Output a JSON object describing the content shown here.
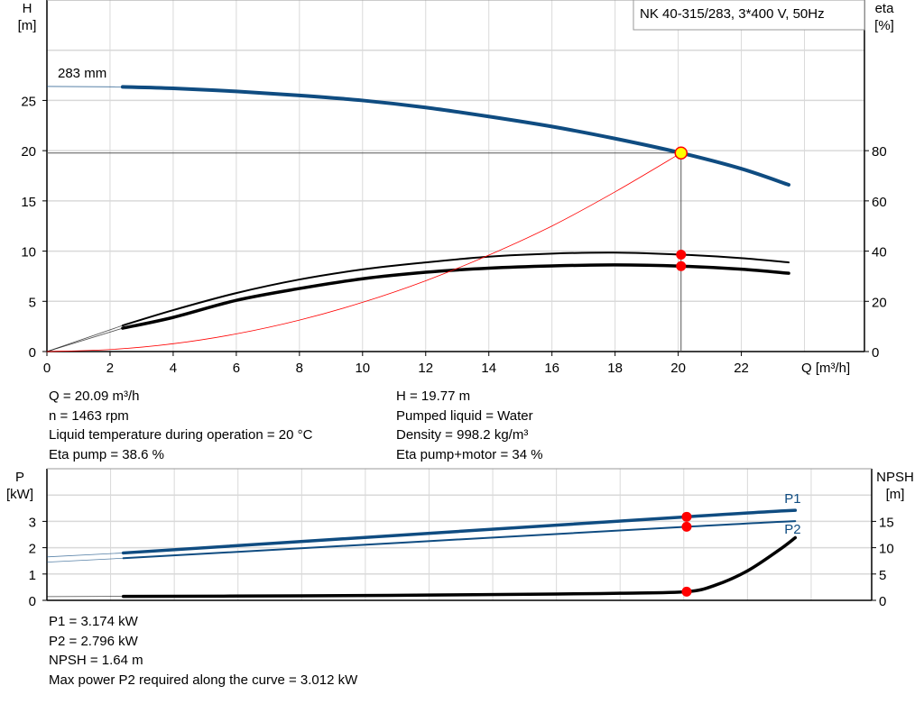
{
  "chart_data": [
    {
      "type": "line",
      "title": "NK 40-315/283, 3*400 V, 50Hz",
      "xlabel": "Q [m³/h]",
      "ylabel": [
        "H",
        "[m]"
      ],
      "y2label": [
        "eta",
        "[%]"
      ],
      "xlim": [
        0,
        25.9
      ],
      "ylim": [
        0,
        35
      ],
      "y2lim": [
        0,
        140
      ],
      "xticks": [
        0,
        2,
        4,
        6,
        8,
        10,
        12,
        14,
        16,
        18,
        20,
        22
      ],
      "yticks": [
        0,
        5,
        10,
        15,
        20,
        25
      ],
      "y2ticks": [
        0,
        20,
        40,
        60,
        80
      ],
      "grid": true,
      "annotation": "283 mm",
      "operating_point": {
        "Q": 20.09,
        "H": 19.77
      },
      "series": [
        {
          "id": "head",
          "axis": "y",
          "color": "#0f4c81",
          "x": [
            2.4,
            4,
            6,
            8,
            10,
            12,
            14,
            16,
            18,
            20.09,
            22,
            23.5
          ],
          "values": [
            26.35,
            26.2,
            25.9,
            25.5,
            25.0,
            24.3,
            23.4,
            22.4,
            21.2,
            19.77,
            18.2,
            16.6
          ],
          "extension": {
            "x": [
              0,
              2.4
            ],
            "values": [
              26.4,
              26.35
            ]
          }
        },
        {
          "id": "eta-pump",
          "axis": "y2",
          "color": "#000000",
          "x": [
            2.4,
            4,
            6,
            8,
            10,
            12,
            14,
            16,
            18,
            20.09,
            22,
            23.5
          ],
          "values": [
            10.4,
            16.5,
            23.3,
            28.7,
            32.7,
            35.5,
            37.8,
            39.0,
            39.4,
            38.6,
            37.2,
            35.5
          ],
          "extension": {
            "x": [
              0,
              2.4
            ],
            "values": [
              0,
              10.4
            ]
          }
        },
        {
          "id": "eta-pump-motor",
          "axis": "y2",
          "color": "#000000",
          "x": [
            2.4,
            4,
            6,
            8,
            10,
            12,
            14,
            16,
            18,
            20.09,
            22,
            23.5
          ],
          "values": [
            9.3,
            13.6,
            20.4,
            25.1,
            29.0,
            31.6,
            33.2,
            34.1,
            34.5,
            34.0,
            32.8,
            31.2
          ],
          "extension": {
            "x": [
              0,
              2.4
            ],
            "values": [
              0,
              9.3
            ]
          }
        },
        {
          "id": "system-curve",
          "axis": "y",
          "color": "#ff0000",
          "x": [
            0,
            2,
            4,
            6,
            8,
            10,
            12,
            14,
            16,
            18,
            20.09
          ],
          "values": [
            0,
            0.2,
            0.78,
            1.76,
            3.13,
            4.9,
            7.05,
            9.6,
            12.5,
            15.9,
            19.77
          ]
        }
      ],
      "markers": [
        {
          "axis": "y2",
          "x": 20.09,
          "value": 38.6
        },
        {
          "axis": "y2",
          "x": 20.09,
          "value": 34.0
        }
      ]
    },
    {
      "type": "line",
      "ylabel": [
        "P",
        "[kW]"
      ],
      "y2label": [
        "NPSH",
        "[m]"
      ],
      "xlim": [
        0,
        25.9
      ],
      "ylim": [
        0,
        5
      ],
      "y2lim": [
        0,
        25
      ],
      "yticks": [
        0,
        1,
        2,
        3
      ],
      "y2ticks": [
        0,
        5,
        10,
        15
      ],
      "grid": true,
      "series": [
        {
          "id": "P1",
          "name": "P1",
          "axis": "y",
          "color": "#0f4c81",
          "x": [
            2.4,
            20.09,
            23.5
          ],
          "values": [
            1.8,
            3.174,
            3.42
          ],
          "extension": {
            "x": [
              0,
              2.4
            ],
            "values": [
              1.65,
              1.8
            ]
          }
        },
        {
          "id": "P2",
          "name": "P2",
          "axis": "y",
          "color": "#0f4c81",
          "x": [
            2.4,
            20.09,
            23.5
          ],
          "values": [
            1.6,
            2.796,
            3.01
          ],
          "extension": {
            "x": [
              0,
              2.4
            ],
            "values": [
              1.45,
              1.6
            ]
          }
        },
        {
          "id": "NPSH",
          "axis": "y2",
          "color": "#000000",
          "x": [
            2.4,
            8,
            12,
            16,
            18,
            20.09,
            21,
            22,
            23,
            23.5
          ],
          "values": [
            0.75,
            0.85,
            1.0,
            1.2,
            1.35,
            1.64,
            2.9,
            5.6,
            9.6,
            11.9
          ],
          "extension": {
            "x": [
              0,
              2.4
            ],
            "values": [
              0.7,
              0.75
            ]
          }
        }
      ],
      "markers": [
        {
          "axis": "y",
          "x": 20.09,
          "value": 3.174
        },
        {
          "axis": "y",
          "x": 20.09,
          "value": 2.796
        },
        {
          "axis": "y2",
          "x": 20.09,
          "value": 1.64
        }
      ]
    }
  ],
  "info_top": {
    "left": [
      "Q = 20.09 m³/h",
      "n = 1463 rpm",
      "Liquid temperature during operation = 20 °C",
      "Eta pump = 38.6 %"
    ],
    "right": [
      "H = 19.77 m",
      "Pumped liquid = Water",
      "Density = 998.2 kg/m³",
      "Eta pump+motor = 34 %"
    ]
  },
  "info_bottom": [
    "P1 = 3.174 kW",
    "P2 = 2.796 kW",
    "NPSH = 1.64 m",
    "Max power P2 required along the curve = 3.012 kW"
  ],
  "colors": {
    "head": "#0f4c81",
    "marker": "#ff0000",
    "operating_point": "#ffff00",
    "grid": "#d9d9d9"
  }
}
